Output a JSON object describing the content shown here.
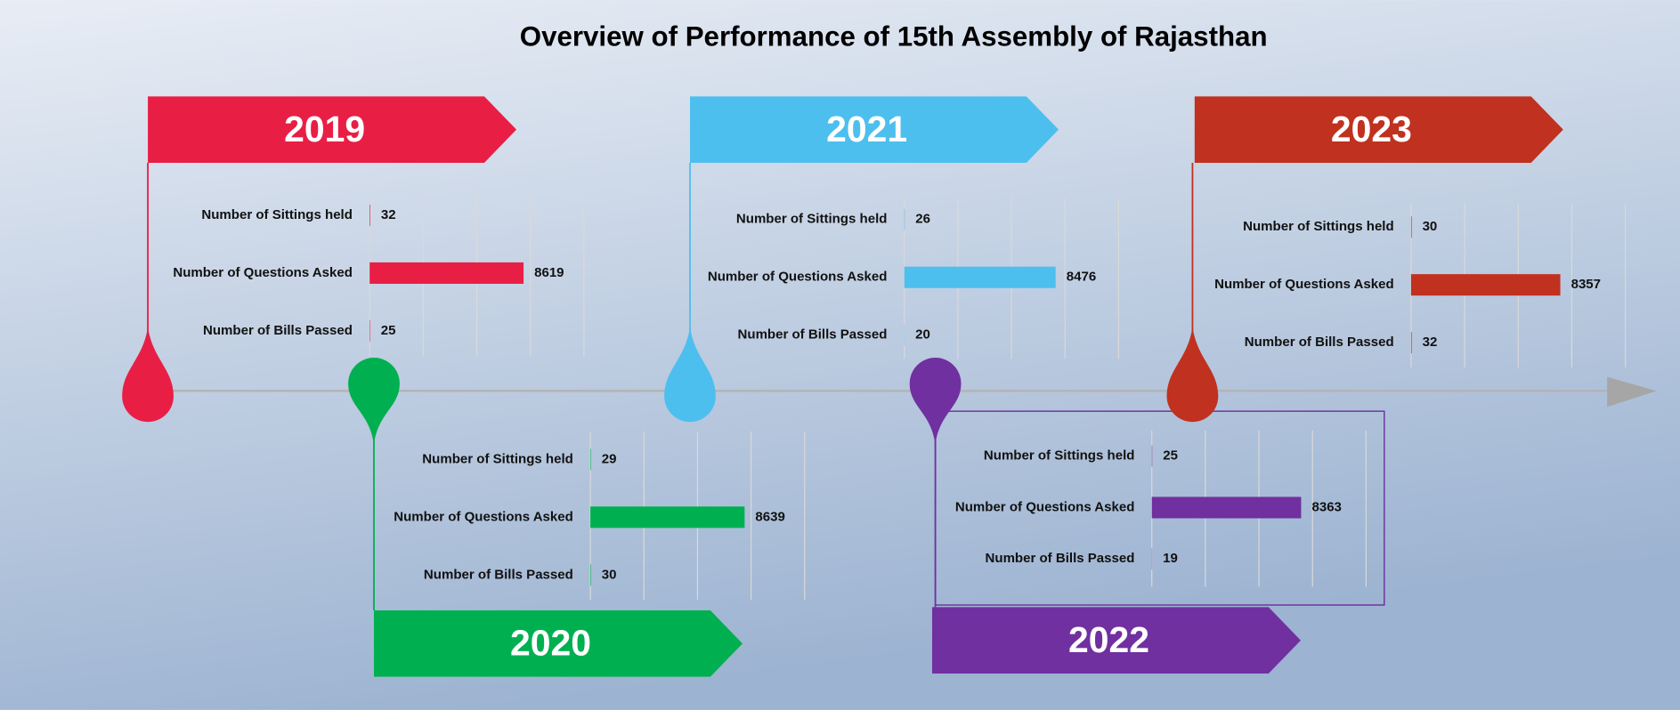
{
  "title": "Overview of Performance of 15th Assembly of Rajasthan",
  "chart_data": [
    {
      "type": "bar",
      "orientation": "horizontal",
      "title": "2019",
      "categories": [
        "Number of Sittings held",
        "Number of Questions Asked",
        "Number of Bills Passed"
      ],
      "values": [
        32,
        8619,
        25
      ],
      "color": "#e91e45",
      "xlim": [
        0,
        12000
      ],
      "xticks": [
        0,
        3000,
        6000,
        9000,
        12000
      ],
      "grid": true
    },
    {
      "type": "bar",
      "orientation": "horizontal",
      "title": "2020",
      "categories": [
        "Number of Sittings held",
        "Number of Questions Asked",
        "Number of Bills Passed"
      ],
      "values": [
        29,
        8639,
        30
      ],
      "color": "#00b050",
      "xlim": [
        0,
        12000
      ],
      "xticks": [
        0,
        3000,
        6000,
        9000,
        12000
      ],
      "grid": true
    },
    {
      "type": "bar",
      "orientation": "horizontal",
      "title": "2021",
      "categories": [
        "Number of Sittings held",
        "Number of Questions Asked",
        "Number of Bills Passed"
      ],
      "values": [
        26,
        8476,
        20
      ],
      "color": "#4dbfee",
      "xlim": [
        0,
        12000
      ],
      "xticks": [
        0,
        3000,
        6000,
        9000,
        12000
      ],
      "grid": true
    },
    {
      "type": "bar",
      "orientation": "horizontal",
      "title": "2022",
      "categories": [
        "Number of Sittings held",
        "Number of Questions Asked",
        "Number of Bills Passed"
      ],
      "values": [
        25,
        8363,
        19
      ],
      "color": "#7030a0",
      "xlim": [
        0,
        12000
      ],
      "xticks": [
        0,
        3000,
        6000,
        9000,
        12000
      ],
      "grid": true
    },
    {
      "type": "bar",
      "orientation": "horizontal",
      "title": "2023",
      "categories": [
        "Number of Sittings held",
        "Number of Questions Asked",
        "Number of Bills Passed"
      ],
      "values": [
        30,
        8357,
        32
      ],
      "color": "#c0311f",
      "xlim": [
        0,
        12000
      ],
      "xticks": [
        0,
        3000,
        6000,
        9000,
        12000
      ],
      "grid": true
    }
  ]
}
